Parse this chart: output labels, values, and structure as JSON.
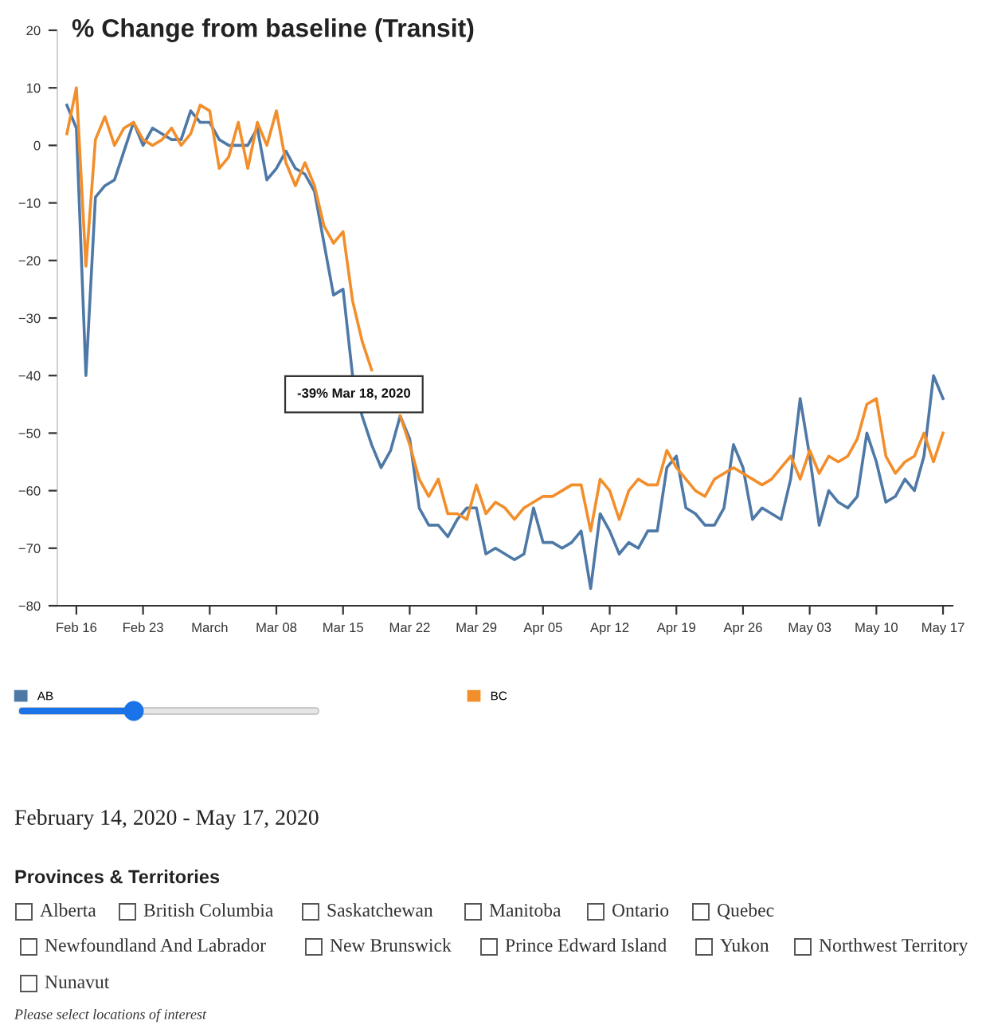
{
  "chart_data": {
    "type": "line",
    "title": "% Change from baseline (Transit)",
    "x": [
      "2020-02-15",
      "2020-02-16",
      "2020-02-17",
      "2020-02-18",
      "2020-02-19",
      "2020-02-20",
      "2020-02-21",
      "2020-02-22",
      "2020-02-23",
      "2020-02-24",
      "2020-02-25",
      "2020-02-26",
      "2020-02-27",
      "2020-02-28",
      "2020-02-29",
      "2020-03-01",
      "2020-03-02",
      "2020-03-03",
      "2020-03-04",
      "2020-03-05",
      "2020-03-06",
      "2020-03-07",
      "2020-03-08",
      "2020-03-09",
      "2020-03-10",
      "2020-03-11",
      "2020-03-12",
      "2020-03-13",
      "2020-03-14",
      "2020-03-15",
      "2020-03-16",
      "2020-03-17",
      "2020-03-18",
      "2020-03-19",
      "2020-03-20",
      "2020-03-21",
      "2020-03-22",
      "2020-03-23",
      "2020-03-24",
      "2020-03-25",
      "2020-03-26",
      "2020-03-27",
      "2020-03-28",
      "2020-03-29",
      "2020-03-30",
      "2020-03-31",
      "2020-04-01",
      "2020-04-02",
      "2020-04-03",
      "2020-04-04",
      "2020-04-05",
      "2020-04-06",
      "2020-04-07",
      "2020-04-08",
      "2020-04-09",
      "2020-04-10",
      "2020-04-11",
      "2020-04-12",
      "2020-04-13",
      "2020-04-14",
      "2020-04-15",
      "2020-04-16",
      "2020-04-17",
      "2020-04-18",
      "2020-04-19",
      "2020-04-20",
      "2020-04-21",
      "2020-04-22",
      "2020-04-23",
      "2020-04-24",
      "2020-04-25",
      "2020-04-26",
      "2020-04-27",
      "2020-04-28",
      "2020-04-29",
      "2020-04-30",
      "2020-05-01",
      "2020-05-02",
      "2020-05-03",
      "2020-05-04",
      "2020-05-05",
      "2020-05-06",
      "2020-05-07",
      "2020-05-08",
      "2020-05-09",
      "2020-05-10",
      "2020-05-11",
      "2020-05-12",
      "2020-05-13",
      "2020-05-14",
      "2020-05-15",
      "2020-05-16",
      "2020-05-17"
    ],
    "series": [
      {
        "name": "AB",
        "color": "#4e79a7",
        "values": [
          7,
          3,
          -40,
          -9,
          -7,
          -6,
          -1,
          4,
          0,
          3,
          2,
          1,
          1,
          6,
          4,
          4,
          1,
          0,
          0,
          0,
          3,
          -6,
          -4,
          -1,
          -4,
          -5,
          -8,
          -17,
          -26,
          -25,
          -40,
          -47,
          -52,
          -56,
          -53,
          -47,
          -51,
          -63,
          -66,
          -66,
          -68,
          -65,
          -63,
          -63,
          -71,
          -70,
          -71,
          -72,
          -71,
          -63,
          -69,
          -69,
          -70,
          -69,
          -67,
          -77,
          -64,
          -67,
          -71,
          -69,
          -70,
          -67,
          -67,
          -56,
          -54,
          -63,
          -64,
          -66,
          -66,
          -63,
          -52,
          -56,
          -65,
          -63,
          -64,
          -65,
          -58,
          -44,
          -54,
          -66,
          -60,
          -62,
          -63,
          -61,
          -50,
          -55,
          -62,
          -61,
          -58,
          -60,
          -54,
          -40,
          -44
        ]
      },
      {
        "name": "BC",
        "color": "#f28e2b",
        "values": [
          2,
          10,
          -21,
          1,
          5,
          0,
          3,
          4,
          1,
          0,
          1,
          3,
          0,
          2,
          7,
          6,
          -4,
          -2,
          4,
          -4,
          4,
          0,
          6,
          -3,
          -7,
          -3,
          -7,
          -14,
          -17,
          -15,
          -27,
          -34,
          -39,
          null,
          null,
          -47,
          -52,
          -58,
          -61,
          -58,
          -64,
          -64,
          -65,
          -59,
          -64,
          -62,
          -63,
          -65,
          -63,
          -62,
          -61,
          -61,
          -60,
          -59,
          -59,
          -67,
          -58,
          -60,
          -65,
          -60,
          -58,
          -59,
          -59,
          -53,
          -56,
          -58,
          -60,
          -61,
          -58,
          -57,
          -56,
          -57,
          -58,
          -59,
          -58,
          -56,
          -54,
          -58,
          -53,
          -57,
          -54,
          -55,
          -54,
          -51,
          -45,
          -44,
          -54,
          -57,
          -55,
          -54,
          -50,
          -55,
          -50
        ]
      }
    ],
    "xlim": [
      "2020-02-14",
      "2020-05-18"
    ],
    "xticks": [
      {
        "value": "2020-02-16",
        "label": "Feb 16"
      },
      {
        "value": "2020-02-23",
        "label": "Feb 23"
      },
      {
        "value": "2020-03-01",
        "label": "March"
      },
      {
        "value": "2020-03-08",
        "label": "Mar 08"
      },
      {
        "value": "2020-03-15",
        "label": "Mar 15"
      },
      {
        "value": "2020-03-22",
        "label": "Mar 22"
      },
      {
        "value": "2020-03-29",
        "label": "Mar 29"
      },
      {
        "value": "2020-04-05",
        "label": "Apr 05"
      },
      {
        "value": "2020-04-12",
        "label": "Apr 12"
      },
      {
        "value": "2020-04-19",
        "label": "Apr 19"
      },
      {
        "value": "2020-04-26",
        "label": "Apr 26"
      },
      {
        "value": "2020-05-03",
        "label": "May 03"
      },
      {
        "value": "2020-05-10",
        "label": "May 10"
      },
      {
        "value": "2020-05-17",
        "label": "May 17"
      }
    ],
    "ylim": [
      -80,
      20
    ],
    "yticks": [
      -80,
      -70,
      -60,
      -50,
      -40,
      -30,
      -20,
      -10,
      0,
      10,
      20
    ],
    "grid": false,
    "legend": "bottom",
    "marker": "none",
    "line_style": "solid",
    "annotations": [
      {
        "text": "-39% Mar 18, 2020",
        "x": "2020-03-18",
        "y": -39
      },
      "February 14, 2020 - May 17, 2020",
      "Provinces & Territories",
      "Alberta",
      "British Columbia",
      "Saskatchewan",
      "Manitoba",
      "Ontario",
      "Quebec",
      "Newfoundland And Labrador",
      "New Brunswick",
      "Prince Edward Island",
      "Yukon",
      "Northwest Territory",
      "Nunavut",
      "Please select locations of interest"
    ]
  }
}
